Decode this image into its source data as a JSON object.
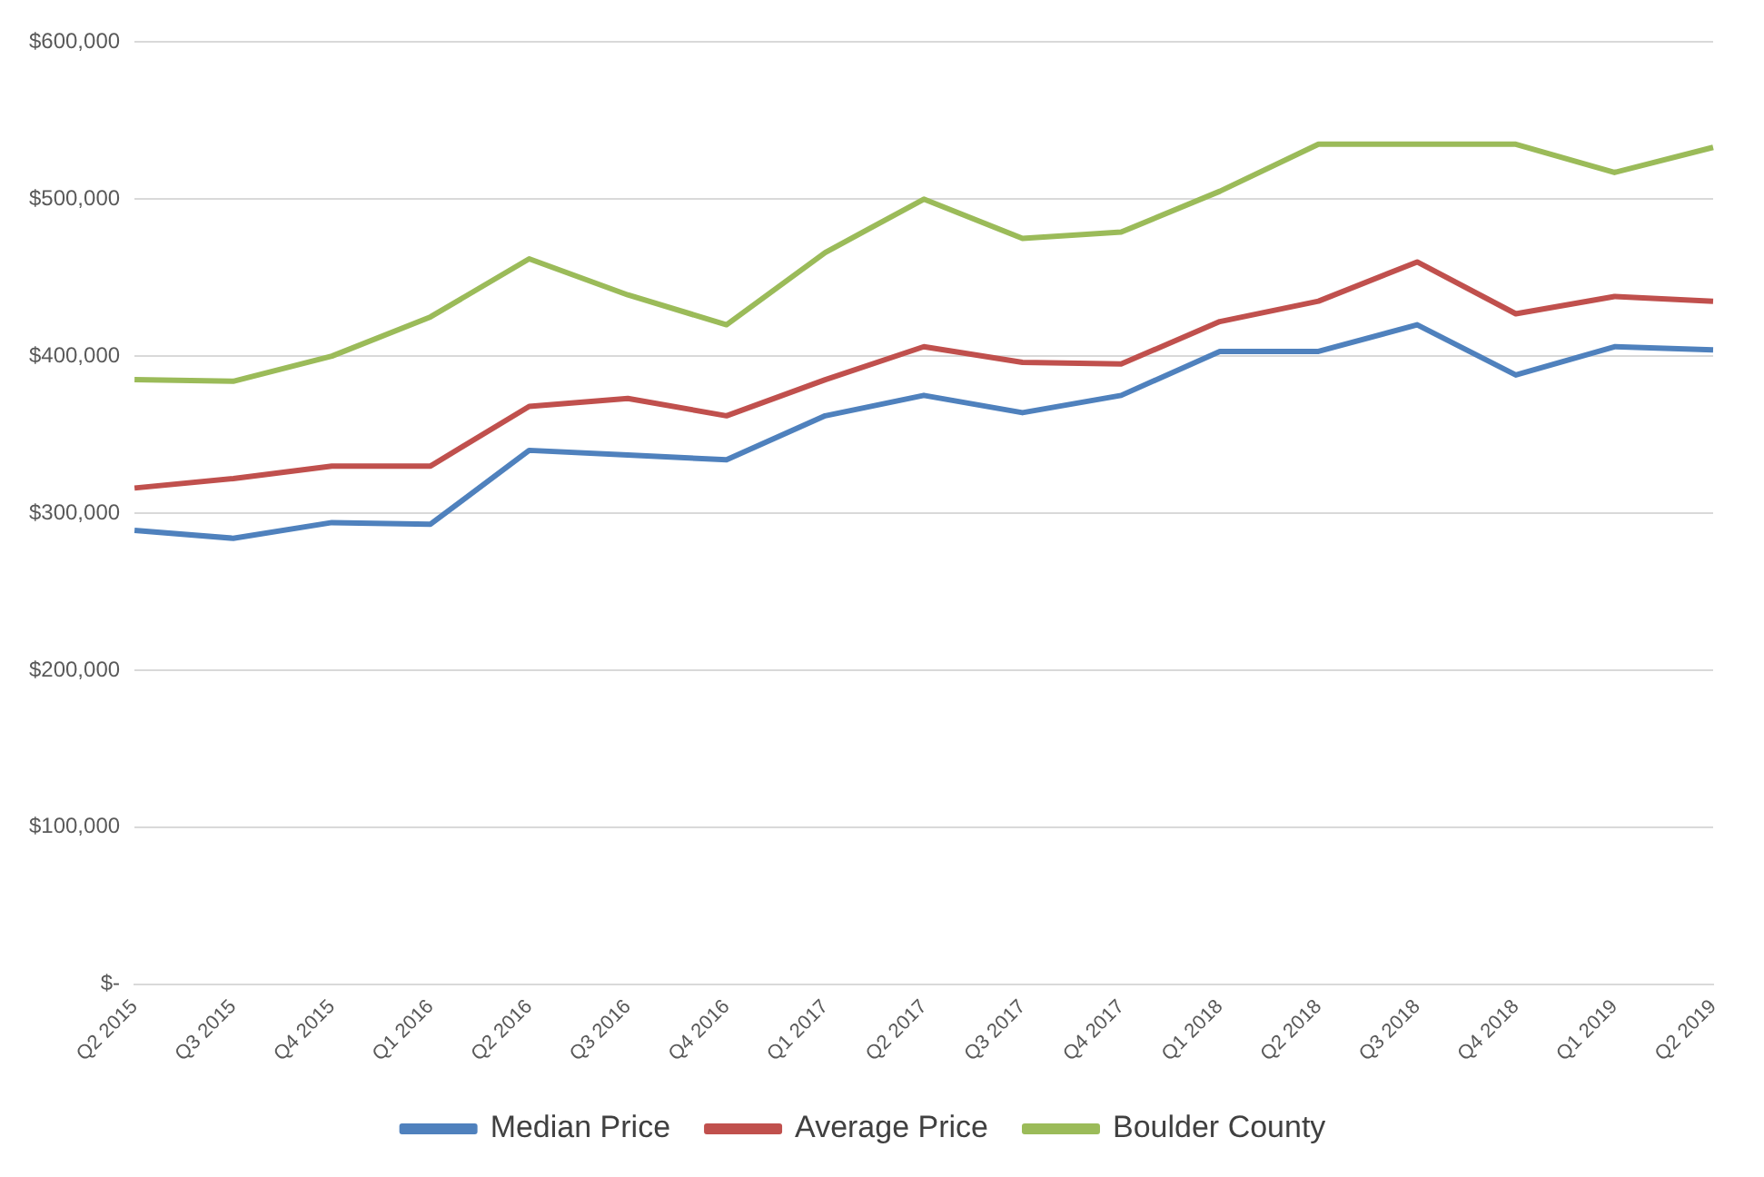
{
  "chart_data": {
    "type": "line",
    "categories": [
      "Q2 2015",
      "Q3 2015",
      "Q4 2015",
      "Q1 2016",
      "Q2 2016",
      "Q3 2016",
      "Q4 2016",
      "Q1 2017",
      "Q2 2017",
      "Q3 2017",
      "Q4 2017",
      "Q1 2018",
      "Q2 2018",
      "Q3 2018",
      "Q4 2018",
      "Q1 2019",
      "Q2 2019"
    ],
    "series": [
      {
        "name": "Median Price",
        "color": "#4f81bd",
        "values": [
          289000,
          284000,
          294000,
          293000,
          340000,
          337000,
          334000,
          362000,
          375000,
          364000,
          375000,
          403000,
          403000,
          420000,
          388000,
          406000,
          404000
        ]
      },
      {
        "name": "Average Price",
        "color": "#c0504d",
        "values": [
          316000,
          322000,
          330000,
          330000,
          368000,
          373000,
          362000,
          385000,
          406000,
          396000,
          395000,
          422000,
          435000,
          460000,
          427000,
          438000,
          435000
        ]
      },
      {
        "name": "Boulder County",
        "color": "#9bbb59",
        "values": [
          385000,
          384000,
          400000,
          425000,
          462000,
          439000,
          420000,
          466000,
          500000,
          475000,
          479000,
          505000,
          535000,
          535000,
          535000,
          517000,
          533000
        ]
      }
    ],
    "ylim": [
      0,
      600000
    ],
    "yticks": [
      {
        "value": 0,
        "label": "$-"
      },
      {
        "value": 100000,
        "label": "$100,000"
      },
      {
        "value": 200000,
        "label": "$200,000"
      },
      {
        "value": 300000,
        "label": "$300,000"
      },
      {
        "value": 400000,
        "label": "$400,000"
      },
      {
        "value": 500000,
        "label": "$500,000"
      },
      {
        "value": 600000,
        "label": "$600,000"
      }
    ],
    "grid": "y",
    "legend": "bottom",
    "marker": "none",
    "line_style": "solid"
  }
}
